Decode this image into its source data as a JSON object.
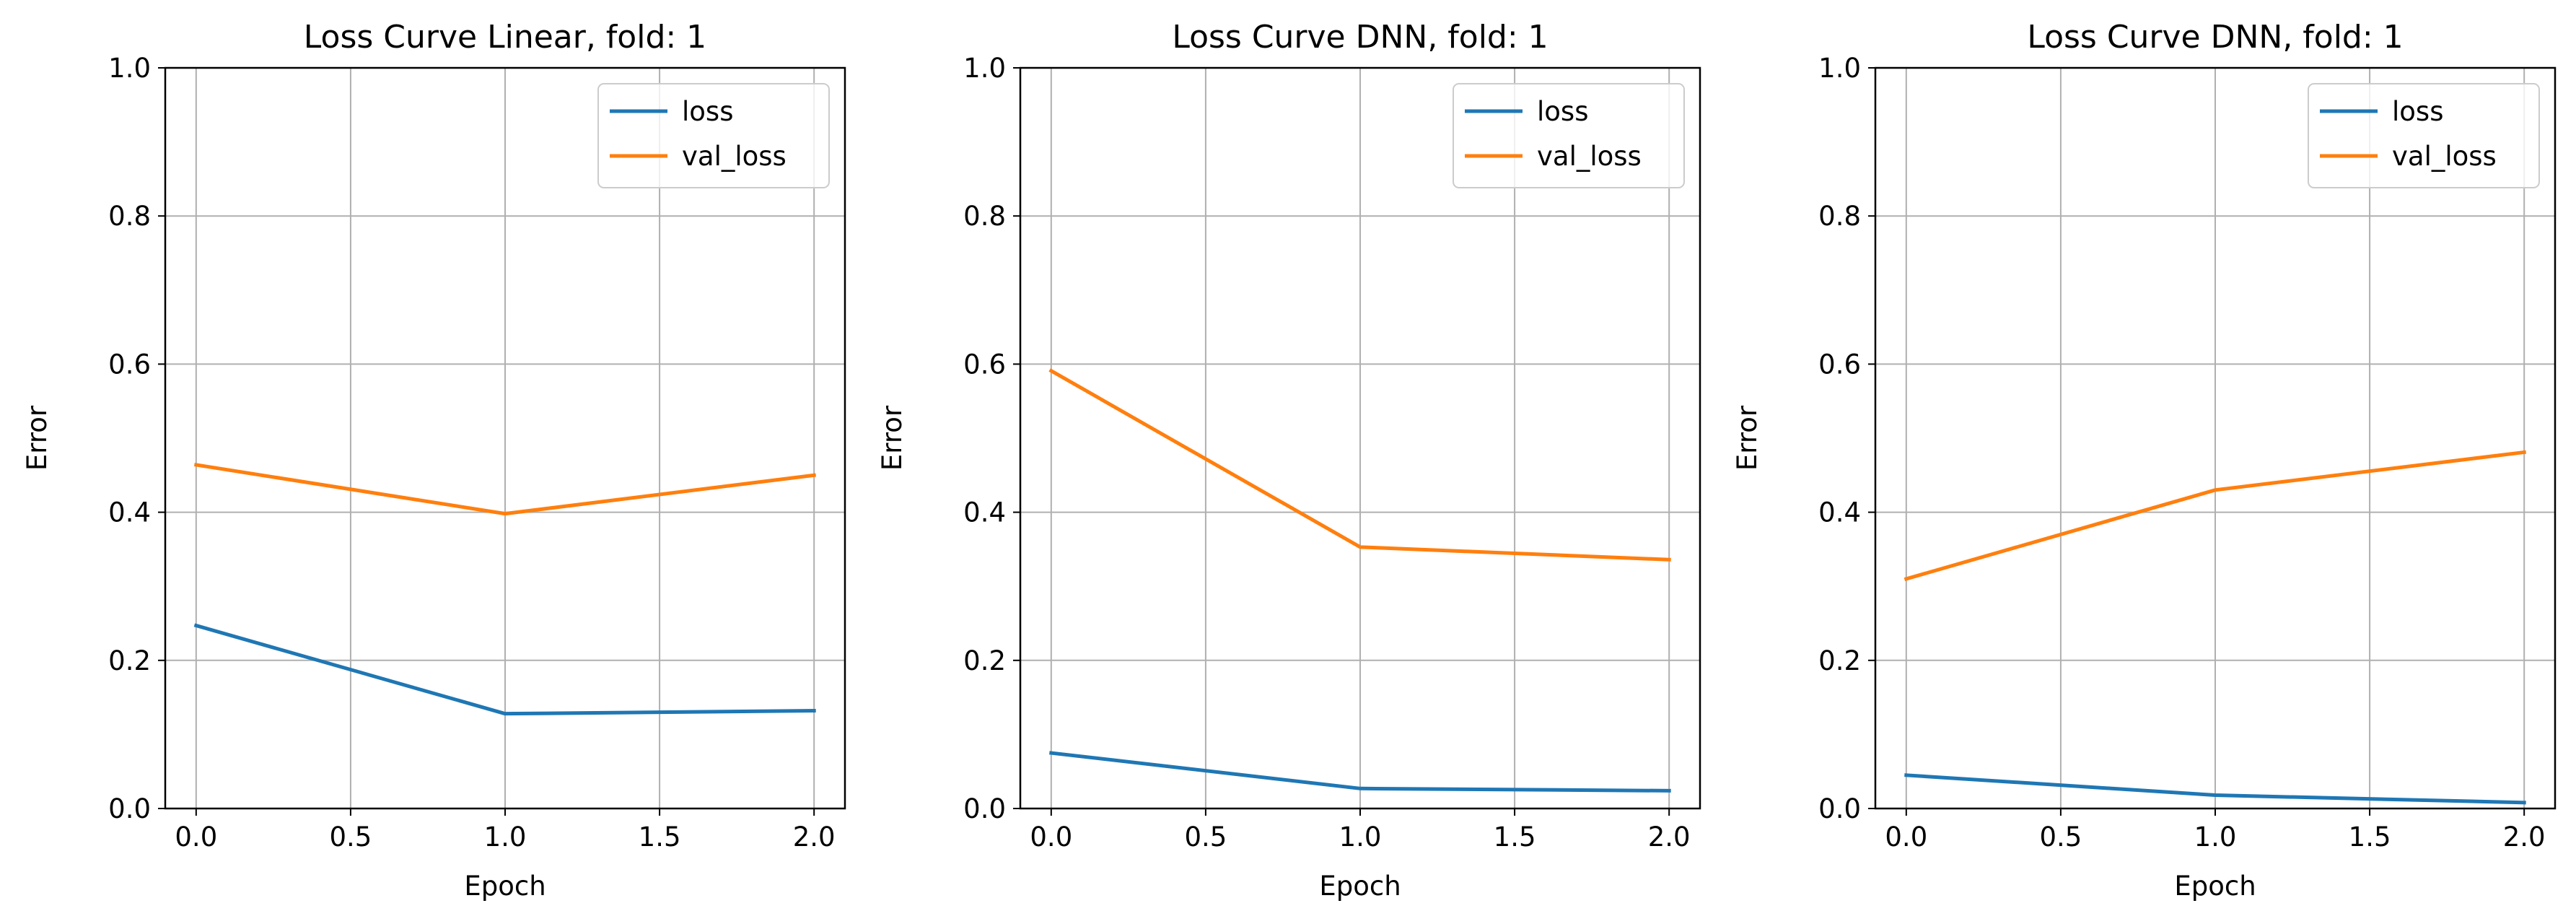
{
  "figure": {
    "background": "#ffffff"
  },
  "chart_data": [
    {
      "type": "line",
      "title": "Loss Curve Linear, fold: 1",
      "xlabel": "Epoch",
      "ylabel": "Error",
      "x": [
        0.0,
        1.0,
        2.0
      ],
      "xlim": [
        -0.1,
        2.1
      ],
      "ylim": [
        0.0,
        1.0
      ],
      "xticks": [
        "0.0",
        "0.5",
        "1.0",
        "1.5",
        "2.0"
      ],
      "yticks": [
        "0.0",
        "0.2",
        "0.4",
        "0.6",
        "0.8",
        "1.0"
      ],
      "grid": true,
      "legend_position": "top-right",
      "series": [
        {
          "name": "loss",
          "color": "#1f77b4",
          "values": [
            0.247,
            0.128,
            0.132
          ]
        },
        {
          "name": "val_loss",
          "color": "#ff7f0e",
          "values": [
            0.464,
            0.398,
            0.45
          ]
        }
      ]
    },
    {
      "type": "line",
      "title": "Loss Curve DNN, fold: 1",
      "xlabel": "Epoch",
      "ylabel": "Error",
      "x": [
        0.0,
        1.0,
        2.0
      ],
      "xlim": [
        -0.1,
        2.1
      ],
      "ylim": [
        0.0,
        1.0
      ],
      "xticks": [
        "0.0",
        "0.5",
        "1.0",
        "1.5",
        "2.0"
      ],
      "yticks": [
        "0.0",
        "0.2",
        "0.4",
        "0.6",
        "0.8",
        "1.0"
      ],
      "grid": true,
      "legend_position": "top-right",
      "series": [
        {
          "name": "loss",
          "color": "#1f77b4",
          "values": [
            0.075,
            0.027,
            0.024
          ]
        },
        {
          "name": "val_loss",
          "color": "#ff7f0e",
          "values": [
            0.591,
            0.353,
            0.336
          ]
        }
      ]
    },
    {
      "type": "line",
      "title": "Loss Curve DNN, fold: 1",
      "xlabel": "Epoch",
      "ylabel": "Error",
      "x": [
        0.0,
        1.0,
        2.0
      ],
      "xlim": [
        -0.1,
        2.1
      ],
      "ylim": [
        0.0,
        1.0
      ],
      "xticks": [
        "0.0",
        "0.5",
        "1.0",
        "1.5",
        "2.0"
      ],
      "yticks": [
        "0.0",
        "0.2",
        "0.4",
        "0.6",
        "0.8",
        "1.0"
      ],
      "grid": true,
      "legend_position": "top-right",
      "series": [
        {
          "name": "loss",
          "color": "#1f77b4",
          "values": [
            0.045,
            0.018,
            0.008
          ]
        },
        {
          "name": "val_loss",
          "color": "#ff7f0e",
          "values": [
            0.31,
            0.43,
            0.481
          ]
        }
      ]
    }
  ]
}
